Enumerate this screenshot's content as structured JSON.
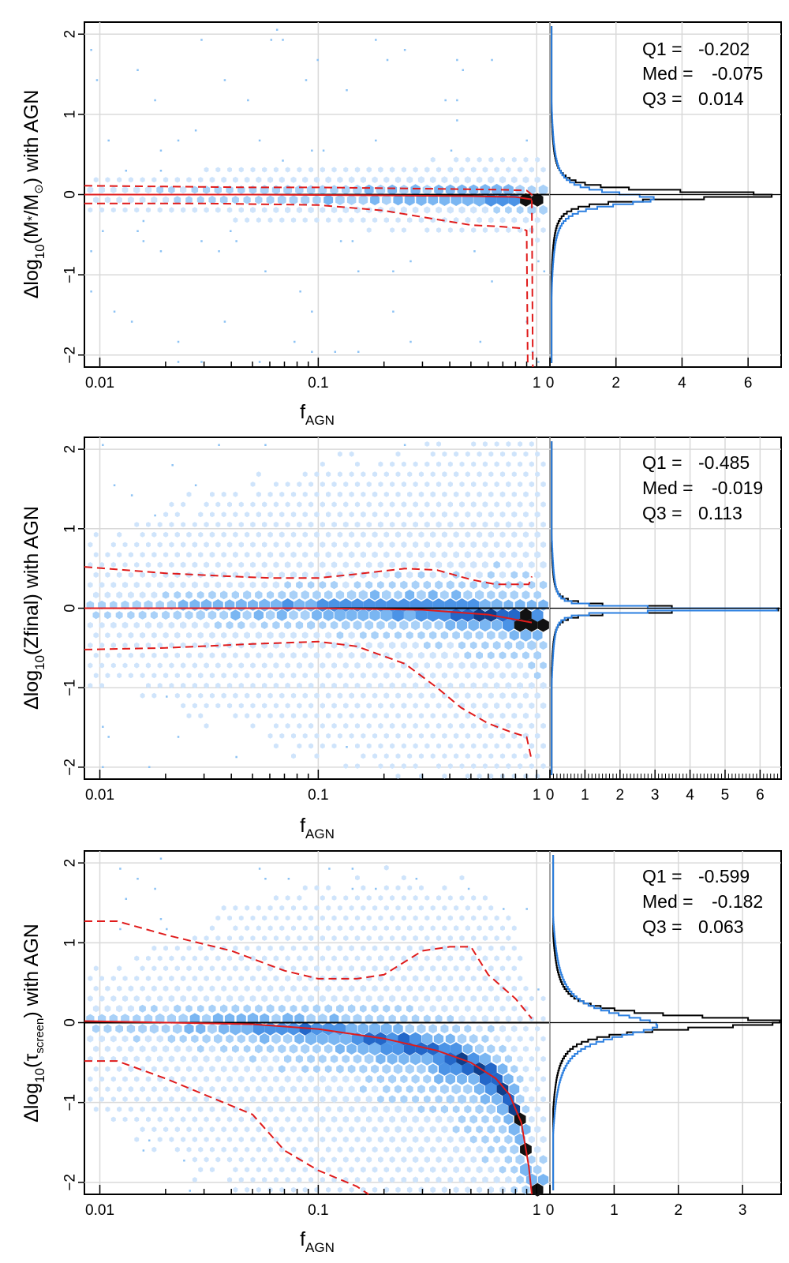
{
  "chart_data": [
    {
      "type": "hexbin-scatter",
      "panel": "stellar-mass",
      "xlabel": "f",
      "xlabel_sub": "AGN",
      "ylabel_main": "Δlog",
      "ylabel_sub": "10",
      "ylabel_rest": "(M",
      "ylabel_star": "*",
      "ylabel_mid": "/M",
      "ylabel_sun": "⊙",
      "ylabel_end": ") with AGN",
      "xscale": "log",
      "xlim": [
        0.0085,
        1.15
      ],
      "ylim": [
        -2.15,
        2.15
      ],
      "x_ticks": [
        0.01,
        0.1,
        1
      ],
      "x_tick_labels": [
        "0.01",
        "0.1",
        "1"
      ],
      "y_ticks": [
        -2,
        -1,
        0,
        1,
        2
      ],
      "y_tick_labels": [
        "−2",
        "−1",
        "0",
        "1",
        "2"
      ],
      "density_profile": {
        "center": -0.02,
        "core": 0.09,
        "wide": 0.45,
        "spread": "narrow"
      },
      "upper_quartile_curve": {
        "x": [
          0.0085,
          0.02,
          0.05,
          0.1,
          0.2,
          0.4,
          0.7,
          0.9,
          0.95,
          0.96
        ],
        "y": [
          0.11,
          0.1,
          0.09,
          0.09,
          0.08,
          0.07,
          0.06,
          0.05,
          0.0,
          -2.15
        ]
      },
      "median_curve": {
        "x": [
          0.0085,
          0.05,
          0.2,
          0.5,
          0.8,
          0.95
        ],
        "y": [
          0.0,
          0.0,
          -0.01,
          -0.02,
          -0.03,
          -0.06
        ]
      },
      "lower_quartile_curve": {
        "x": [
          0.0085,
          0.03,
          0.1,
          0.2,
          0.3,
          0.5,
          0.7,
          0.85,
          0.9,
          0.91
        ],
        "y": [
          -0.11,
          -0.11,
          -0.13,
          -0.2,
          -0.28,
          -0.38,
          -0.4,
          -0.42,
          -0.45,
          -2.15
        ]
      },
      "histogram": {
        "xlim": [
          0,
          7.0
        ],
        "x_ticks": [
          0,
          2,
          4,
          6
        ],
        "x_tick_labels": [
          "0",
          "2",
          "4",
          "6"
        ],
        "black_peak": 6.8,
        "black_peak_y": 0.01,
        "black_width": 0.09,
        "blue_peak": 3.0,
        "blue_peak_y": -0.04,
        "blue_width": 0.15
      },
      "stats": {
        "q1_label": "Q1 =",
        "q1": "-0.202",
        "med_label": "Med =",
        "med": "-0.075",
        "q3_label": "Q3 =",
        "q3": "0.014"
      }
    },
    {
      "type": "hexbin-scatter",
      "panel": "metallicity",
      "xlabel": "f",
      "xlabel_sub": "AGN",
      "ylabel_main": "Δlog",
      "ylabel_sub": "10",
      "ylabel_rest": "(Zfinal) with AGN",
      "xscale": "log",
      "xlim": [
        0.0085,
        1.15
      ],
      "ylim": [
        -2.15,
        2.15
      ],
      "x_ticks": [
        0.01,
        0.1,
        1
      ],
      "x_tick_labels": [
        "0.01",
        "0.1",
        "1"
      ],
      "y_ticks": [
        -2,
        -1,
        0,
        1,
        2
      ],
      "y_tick_labels": [
        "−2",
        "−1",
        "0",
        "1",
        "2"
      ],
      "density_profile": {
        "center": 0.0,
        "core": 0.12,
        "wide": 1.2,
        "spread": "wide"
      },
      "upper_quartile_curve": {
        "x": [
          0.0085,
          0.02,
          0.04,
          0.06,
          0.1,
          0.15,
          0.25,
          0.35,
          0.5,
          0.65,
          0.8,
          0.92,
          0.95
        ],
        "y": [
          0.52,
          0.44,
          0.4,
          0.38,
          0.38,
          0.43,
          0.5,
          0.48,
          0.36,
          0.3,
          0.3,
          0.3,
          0.4
        ]
      },
      "median_curve": {
        "x": [
          0.0085,
          0.1,
          0.3,
          0.6,
          0.95
        ],
        "y": [
          0.0,
          0.0,
          -0.02,
          -0.08,
          -0.18
        ]
      },
      "lower_quartile_curve": {
        "x": [
          0.0085,
          0.02,
          0.05,
          0.1,
          0.15,
          0.25,
          0.35,
          0.45,
          0.6,
          0.75,
          0.9,
          0.95
        ],
        "y": [
          -0.52,
          -0.5,
          -0.45,
          -0.42,
          -0.48,
          -0.7,
          -1.0,
          -1.25,
          -1.45,
          -1.55,
          -1.62,
          -1.92
        ]
      },
      "histogram": {
        "xlim": [
          0,
          6.6
        ],
        "x_ticks": [
          0,
          1,
          2,
          3,
          4,
          5,
          6
        ],
        "x_tick_labels": [
          "0",
          "1",
          "2",
          "3",
          "4",
          "5",
          "6"
        ],
        "black_peak": 6.4,
        "black_peak_y": 0.0,
        "black_width": 0.05,
        "blue_peak": 6.3,
        "blue_peak_y": 0.0,
        "blue_width": 0.04
      },
      "stats": {
        "q1_label": "Q1 =",
        "q1": "-0.485",
        "med_label": "Med =",
        "med": "-0.019",
        "q3_label": "Q3 =",
        "q3": "0.113"
      }
    },
    {
      "type": "hexbin-scatter",
      "panel": "screen-optical-depth",
      "xlabel": "f",
      "xlabel_sub": "AGN",
      "ylabel_main": "Δlog",
      "ylabel_sub": "10",
      "ylabel_rest": "(τ",
      "ylabel_tau_sub": "screen",
      "ylabel_end": ") with AGN",
      "xscale": "log",
      "xlim": [
        0.0085,
        1.15
      ],
      "ylim": [
        -2.15,
        2.15
      ],
      "x_ticks": [
        0.01,
        0.1,
        1
      ],
      "x_tick_labels": [
        "0.01",
        "0.1",
        "1"
      ],
      "y_ticks": [
        -2,
        -1,
        0,
        1,
        2
      ],
      "y_tick_labels": [
        "−2",
        "−1",
        "0",
        "1",
        "2"
      ],
      "density_profile": {
        "center": 0.0,
        "core": 0.15,
        "wide": 1.3,
        "spread": "skewed"
      },
      "upper_quartile_curve": {
        "x": [
          0.0085,
          0.012,
          0.02,
          0.04,
          0.07,
          0.1,
          0.15,
          0.2,
          0.3,
          0.4,
          0.5,
          0.6,
          0.8,
          0.95
        ],
        "y": [
          1.27,
          1.27,
          1.1,
          0.9,
          0.65,
          0.55,
          0.55,
          0.6,
          0.9,
          0.95,
          0.95,
          0.6,
          0.3,
          0.05
        ]
      },
      "median_curve": {
        "x": [
          0.0085,
          0.05,
          0.1,
          0.2,
          0.35,
          0.5,
          0.65,
          0.75,
          0.85,
          0.92,
          0.95
        ],
        "y": [
          0.02,
          -0.02,
          -0.08,
          -0.2,
          -0.35,
          -0.5,
          -0.7,
          -0.9,
          -1.25,
          -1.8,
          -2.15
        ]
      },
      "lower_quartile_curve": {
        "x": [
          0.0085,
          0.012,
          0.02,
          0.03,
          0.05,
          0.07,
          0.1,
          0.15,
          0.17
        ],
        "y": [
          -0.48,
          -0.48,
          -0.7,
          -0.9,
          -1.15,
          -1.6,
          -1.85,
          -2.05,
          -2.15
        ]
      },
      "histogram": {
        "xlim": [
          0,
          3.6
        ],
        "x_ticks": [
          0,
          1,
          2,
          3
        ],
        "x_tick_labels": [
          "0",
          "1",
          "2",
          "3"
        ],
        "black_peak": 3.5,
        "black_peak_y": 0.02,
        "black_width": 0.15,
        "blue_peak": 1.5,
        "blue_peak_y": -0.02,
        "blue_width": 0.28
      },
      "stats": {
        "q1_label": "Q1 =",
        "q1": "-0.599",
        "med_label": "Med =",
        "med": "-0.182",
        "q3_label": "Q3 =",
        "q3": "0.063"
      }
    }
  ]
}
